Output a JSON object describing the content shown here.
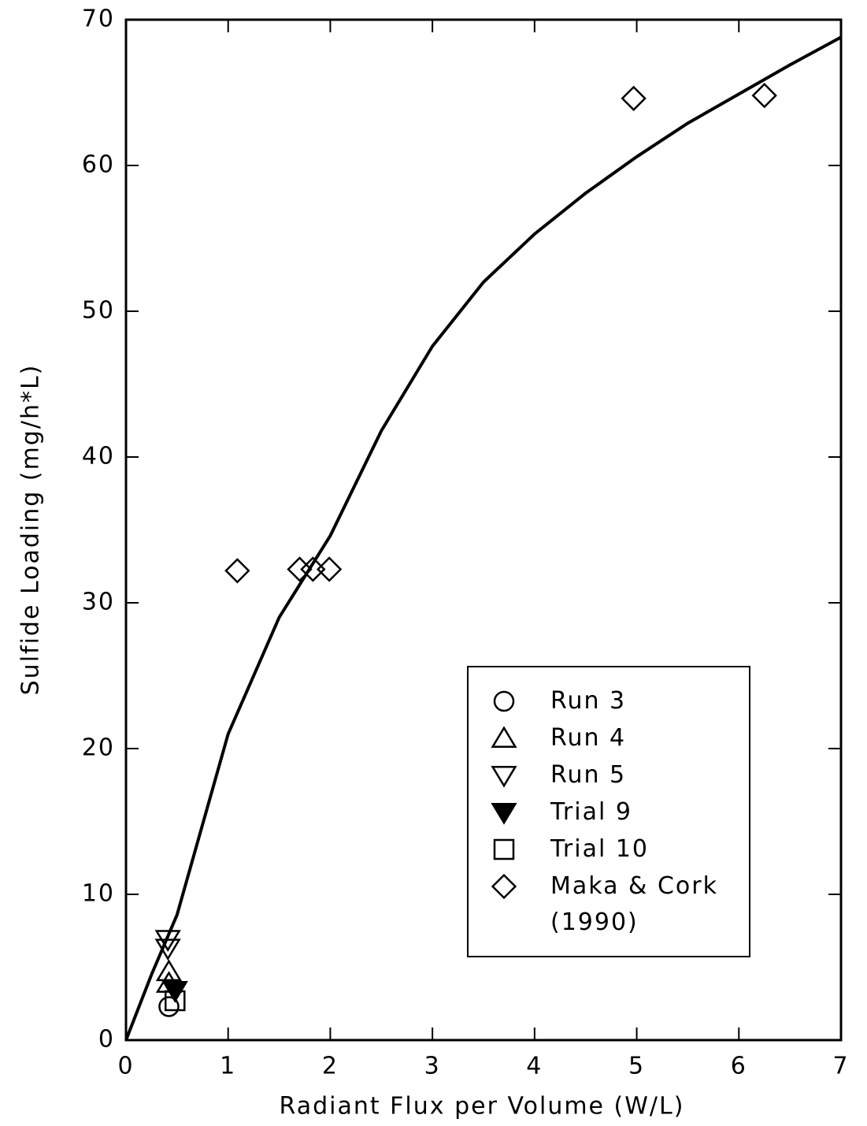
{
  "chart_data": {
    "type": "scatter",
    "xlabel": "Radiant Flux per Volume (W/L)",
    "ylabel": "Sulfide Loading (mg/h*L)",
    "xlim": [
      0,
      7
    ],
    "xticks": [
      0,
      1,
      2,
      3,
      4,
      5,
      6,
      7
    ],
    "ylim": [
      0,
      70
    ],
    "yticks": [
      0,
      10,
      20,
      30,
      40,
      50,
      60,
      70
    ],
    "legend": "lower right",
    "color": "#000000",
    "series": [
      {
        "name": "Run 3",
        "marker": "circle",
        "filled": false,
        "x": [
          0.42
        ],
        "values": [
          2.3
        ]
      },
      {
        "name": "Run 4",
        "marker": "triangle-up",
        "filled": false,
        "x": [
          0.42,
          0.42
        ],
        "values": [
          4.7,
          3.9
        ]
      },
      {
        "name": "Run 5",
        "marker": "triangle-down",
        "filled": false,
        "x": [
          0.41,
          0.41
        ],
        "values": [
          6.9,
          6.3
        ]
      },
      {
        "name": "Trial 9",
        "marker": "triangle-down",
        "filled": true,
        "x": [
          0.48
        ],
        "values": [
          3.4
        ]
      },
      {
        "name": "Trial 10",
        "marker": "square",
        "filled": false,
        "x": [
          0.48
        ],
        "values": [
          2.7
        ]
      },
      {
        "name": "Maka & Cork (1990)",
        "marker": "diamond",
        "filled": false,
        "x": [
          1.09,
          1.7,
          1.83,
          1.99,
          4.97,
          6.25
        ],
        "values": [
          32.2,
          32.3,
          32.3,
          32.3,
          64.6,
          64.8
        ]
      }
    ],
    "curve": {
      "x": [
        0,
        0.25,
        0.5,
        1,
        1.5,
        2,
        2.5,
        3,
        3.5,
        4,
        4.5,
        5,
        5.5,
        6,
        6.5,
        7
      ],
      "values": [
        0,
        4.5,
        8.6,
        21,
        29,
        34.6,
        41.8,
        47.6,
        52,
        55.3,
        58.1,
        60.6,
        62.9,
        64.9,
        66.9,
        68.8
      ]
    }
  }
}
